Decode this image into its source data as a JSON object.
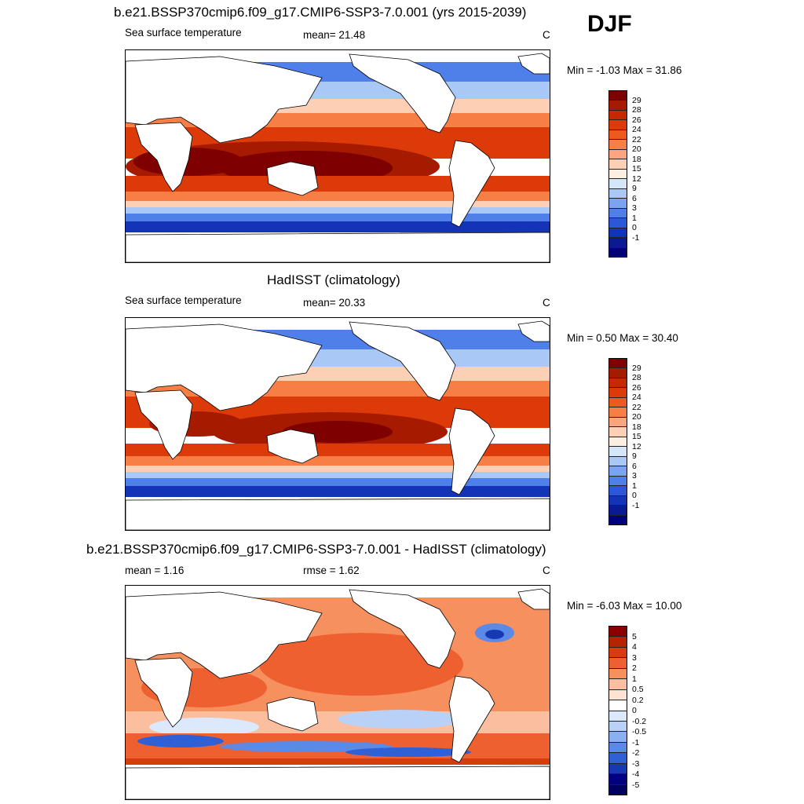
{
  "season": "DJF",
  "panels": [
    {
      "title": "b.e21.BSSP370cmip6.f09_g17.CMIP6-SSP3-7.0.001 (yrs 2015-2039)",
      "left_text": "Sea surface temperature",
      "mid_text": "mean=  21.48",
      "unit": "C",
      "minmax": "Min =  -1.03 Max =  31.86",
      "colorbar_labels": [
        "29",
        "28",
        "26",
        "24",
        "22",
        "20",
        "18",
        "15",
        "12",
        "9",
        "6",
        "3",
        "1",
        "0",
        "-1"
      ]
    },
    {
      "title": "HadISST (climatology)",
      "left_text": "Sea surface temperature",
      "mid_text": "mean=  20.33",
      "unit": "C",
      "minmax": "Min =   0.50 Max =  30.40",
      "colorbar_labels": [
        "29",
        "28",
        "26",
        "24",
        "22",
        "20",
        "18",
        "15",
        "12",
        "9",
        "6",
        "3",
        "1",
        "0",
        "-1"
      ]
    },
    {
      "title": "b.e21.BSSP370cmip6.f09_g17.CMIP6-SSP3-7.0.001 - HadISST (climatology)",
      "left_text": "mean =   1.16",
      "mid_text": "rmse =   1.62",
      "unit": "C",
      "minmax": "Min =  -6.03 Max =  10.00",
      "colorbar_labels": [
        "5",
        "4",
        "3",
        "2",
        "1",
        "0.5",
        "0.2",
        "0",
        "-0.2",
        "-0.5",
        "-1",
        "-2",
        "-3",
        "-4",
        "-5"
      ]
    }
  ],
  "colors": {
    "sst_scale": [
      "#7f0000",
      "#a61a00",
      "#c62800",
      "#dd3a0a",
      "#ee5a1e",
      "#f77f45",
      "#fca57f",
      "#fdd0b5",
      "#fdeee2",
      "#d6e6fa",
      "#a9c8f5",
      "#7ba4ef",
      "#4f7fe8",
      "#2a58d8",
      "#1434b8",
      "#0a1a92",
      "#00007a"
    ],
    "diff_scale": [
      "#8a0000",
      "#b32400",
      "#d63c10",
      "#ef6030",
      "#f7905f",
      "#fbbfa0",
      "#fde3d3",
      "#ffffff",
      "#dce8fb",
      "#b9d0f7",
      "#8bb0f0",
      "#5a89e6",
      "#3060d6",
      "#1638b2",
      "#000080"
    ],
    "land": "#ffffff"
  }
}
